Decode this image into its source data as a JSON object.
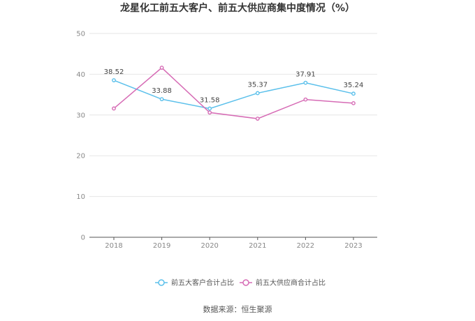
{
  "chart_data": {
    "type": "line",
    "title": "龙星化工前五大客户、前五大供应商集中度情况（%）",
    "categories": [
      "2018",
      "2019",
      "2020",
      "2021",
      "2022",
      "2023"
    ],
    "ylim": [
      0,
      50
    ],
    "yticks": [
      0,
      10,
      20,
      30,
      40,
      50
    ],
    "grid": true,
    "legend_position": "bottom",
    "series": [
      {
        "name": "前五大客户合计占比",
        "color": "#5bc0eb",
        "values": [
          38.52,
          33.88,
          31.58,
          35.37,
          37.91,
          35.24
        ],
        "labels": [
          "38.52",
          "33.88",
          "31.58",
          "35.37",
          "37.91",
          "35.24"
        ]
      },
      {
        "name": "前五大供应商合计占比",
        "color": "#d66bb5",
        "values": [
          31.6,
          41.6,
          30.6,
          29.1,
          33.8,
          32.9
        ]
      }
    ],
    "source": "数据来源：恒生聚源"
  }
}
